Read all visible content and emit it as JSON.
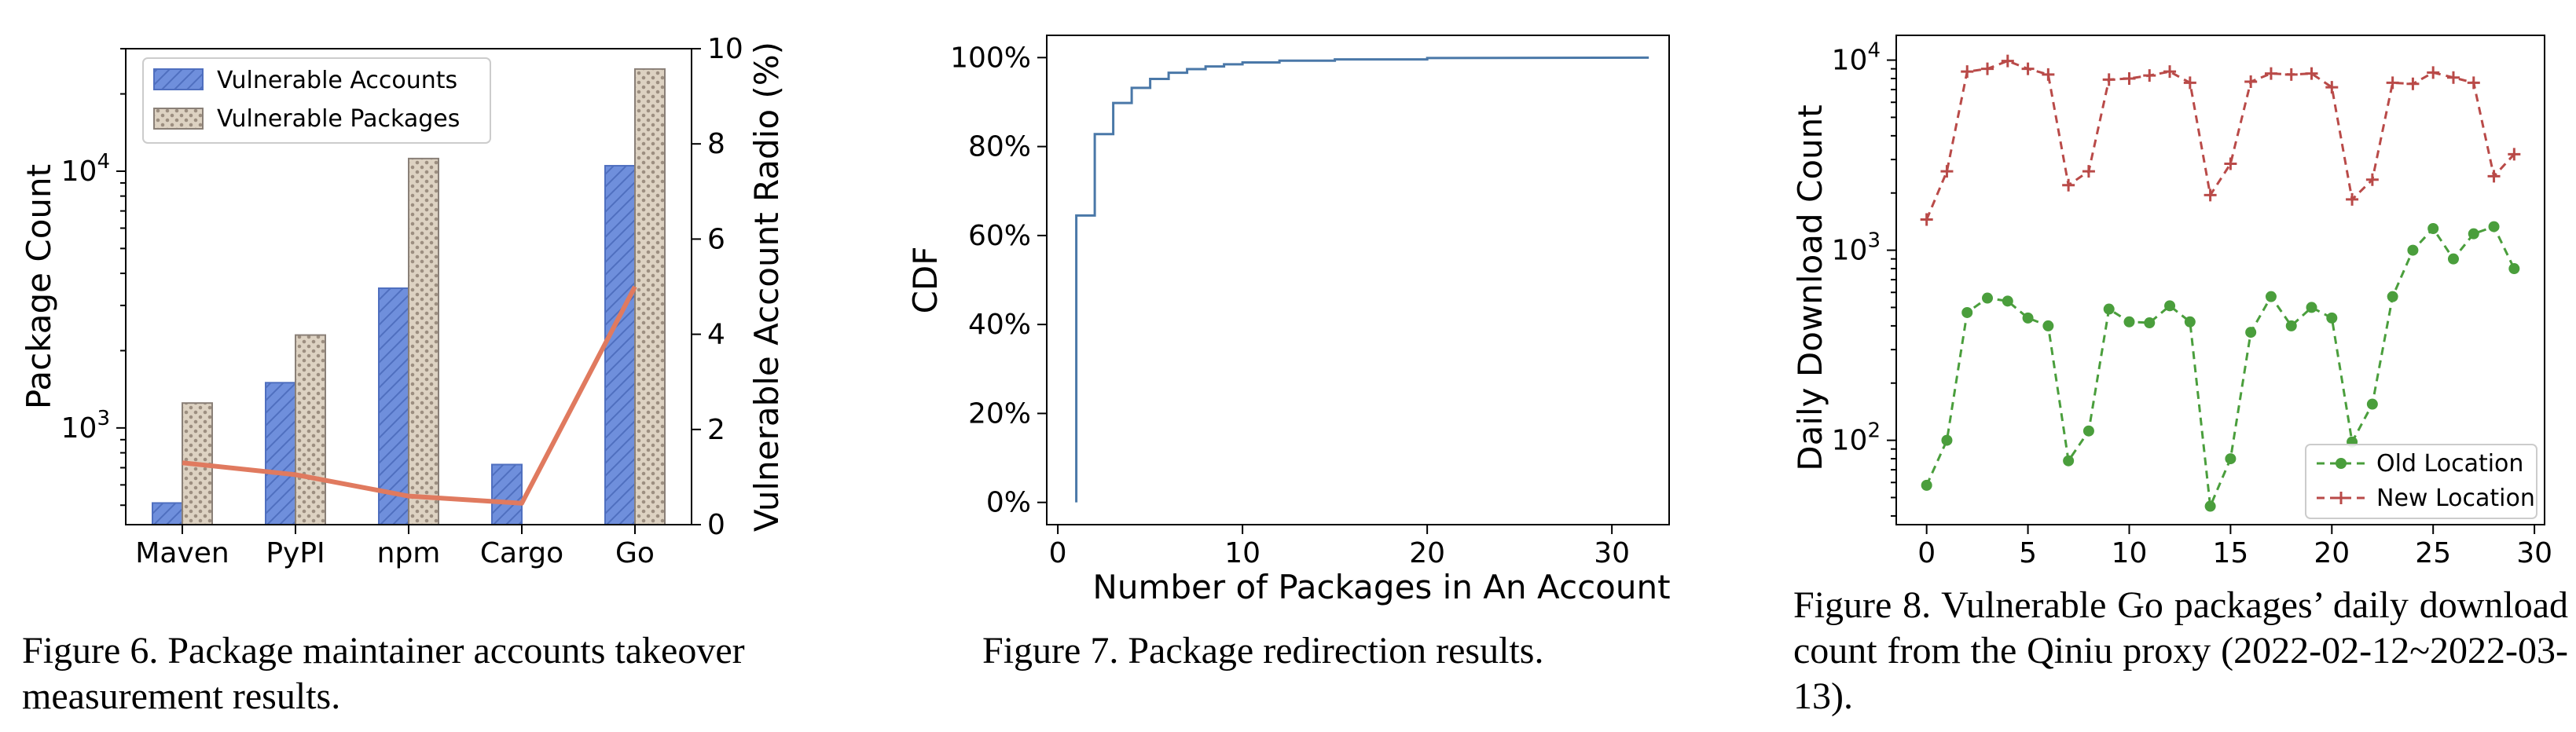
{
  "figure6": {
    "caption": "Figure 6. Package maintainer accounts takeover measurement results."
  },
  "figure7": {
    "caption": "Figure 7. Package redirection results."
  },
  "figure8": {
    "caption": "Figure 8. Vulnerable Go packages’ daily download count from the Qiniu proxy (2022-02-12~2022-03-13)."
  },
  "chart_data": [
    {
      "type": "bar",
      "categories": [
        "Maven",
        "PyPI",
        "npm",
        "Cargo",
        "Go"
      ],
      "series": [
        {
          "name": "Vulnerable Accounts",
          "values": [
            510,
            1500,
            3500,
            720,
            10500
          ],
          "color": "#6f8fdc",
          "hatch": "diagonal"
        },
        {
          "name": "Vulnerable Packages",
          "values": [
            1250,
            2300,
            11200,
            null,
            25000
          ],
          "color": "#d8ccba",
          "hatch": "dots"
        }
      ],
      "line": {
        "values": [
          1.3,
          1.05,
          0.6,
          0.45,
          5.0
        ],
        "color": "#e07a5f"
      },
      "ylabel": "Package Count",
      "ylabel_right": "Vulnerable Account Radio (%)",
      "yscale": "log",
      "ylim": [
        420,
        30000
      ],
      "y_ticks": [
        {
          "value": 1000,
          "base": "10",
          "exp": "3"
        },
        {
          "value": 10000,
          "base": "10",
          "exp": "4"
        }
      ],
      "ylim_right": [
        0,
        10
      ],
      "y_right_ticks": [
        "0",
        "2",
        "4",
        "6",
        "8",
        "10"
      ],
      "legend": "top-left"
    },
    {
      "type": "line",
      "step": true,
      "x": [
        1,
        1,
        2,
        2,
        3,
        3,
        4,
        4,
        5,
        5,
        6,
        6,
        7,
        7,
        8,
        8,
        9,
        9,
        10,
        10,
        12,
        12,
        15,
        15,
        20,
        20,
        32
      ],
      "y": [
        0,
        64.5,
        64.5,
        82.8,
        82.8,
        89.8,
        89.8,
        93.2,
        93.2,
        95.2,
        95.2,
        96.6,
        96.6,
        97.4,
        97.4,
        98.0,
        98.0,
        98.5,
        98.5,
        98.9,
        98.9,
        99.3,
        99.3,
        99.6,
        99.6,
        99.9,
        100
      ],
      "color": "#4a78a8",
      "xlabel": "Number of Packages in An Account",
      "ylabel": "CDF",
      "xlim": [
        -0.6,
        33.1
      ],
      "ylim": [
        -5,
        105
      ],
      "x_ticks": [
        "0",
        "10",
        "20",
        "30"
      ],
      "y_ticks": [
        "0%",
        "20%",
        "40%",
        "60%",
        "80%",
        "100%"
      ]
    },
    {
      "type": "line",
      "series": [
        {
          "name": "Old Location",
          "color": "#4a9e3c",
          "marker": "circle",
          "values": [
            58,
            100,
            470,
            560,
            540,
            440,
            400,
            78,
            112,
            490,
            420,
            415,
            510,
            420,
            45,
            80,
            370,
            570,
            400,
            500,
            440,
            98,
            155,
            570,
            1000,
            1300,
            900,
            1220,
            1330,
            800
          ]
        },
        {
          "name": "New Location",
          "color": "#b94a48",
          "marker": "plus",
          "values": [
            1450,
            2600,
            8700,
            9000,
            9900,
            9000,
            8400,
            2200,
            2600,
            7900,
            8000,
            8300,
            8700,
            7600,
            1950,
            2850,
            7700,
            8500,
            8400,
            8500,
            7200,
            1850,
            2350,
            7600,
            7500,
            8600,
            8100,
            7600,
            2450,
            3200
          ]
        }
      ],
      "x": [
        0,
        1,
        2,
        3,
        4,
        5,
        6,
        7,
        8,
        9,
        10,
        11,
        12,
        13,
        14,
        15,
        16,
        17,
        18,
        19,
        20,
        21,
        22,
        23,
        24,
        25,
        26,
        27,
        28,
        29
      ],
      "ylabel": "Daily Download Count",
      "yscale": "log",
      "xlim": [
        -1.5,
        30.5
      ],
      "ylim": [
        36,
        13500
      ],
      "x_ticks": [
        "0",
        "5",
        "10",
        "15",
        "20",
        "25",
        "30"
      ],
      "y_ticks": [
        {
          "value": 100,
          "base": "10",
          "exp": "2"
        },
        {
          "value": 1000,
          "base": "10",
          "exp": "3"
        },
        {
          "value": 10000,
          "base": "10",
          "exp": "4"
        }
      ],
      "legend": "bottom-right"
    }
  ]
}
